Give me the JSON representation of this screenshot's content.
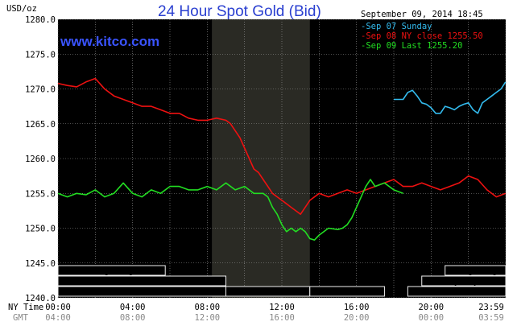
{
  "header": {
    "title": "24 Hour Spot Gold (Bid)",
    "unit": "USD/oz",
    "timestamp": "September 09, 2014 18:45",
    "brand": "www.kitco.com"
  },
  "colors": {
    "background": "#000000",
    "grid": "#9a9a9a",
    "highlight": "#2a2a24",
    "sep07": "#33bbee",
    "sep08": "#ee1111",
    "sep09": "#22dd22",
    "title": "#2a3fd0"
  },
  "time_rows": {
    "ny_label": "NY Time",
    "gmt_label": "GMT",
    "ny_ticks": [
      "00:00",
      "04:00",
      "08:00",
      "12:00",
      "16:00",
      "20:00",
      "23:59"
    ],
    "gmt_ticks": [
      "04:00",
      "08:00",
      "12:00",
      "16:00",
      "20:00",
      "00:00",
      "03:59"
    ]
  },
  "sessions": [
    {
      "label": "Hong Kong",
      "start": 0,
      "end": 5.75,
      "row": 0
    },
    {
      "label": "London",
      "start": 0,
      "end": 9.0,
      "row": 1
    },
    {
      "label": "New York Globex",
      "start": 0,
      "end": 9.0,
      "row": 2
    },
    {
      "label": "New York NYMEX",
      "start": 9.0,
      "end": 13.5,
      "row": 2
    },
    {
      "label": "NY Globex",
      "start": 13.5,
      "end": 17.5,
      "row": 2
    },
    {
      "label": "Hong Kong",
      "start": 20.75,
      "end": 24,
      "row": 0
    },
    {
      "label": "Sydney",
      "start": 19.5,
      "end": 24,
      "row": 1
    },
    {
      "label": "New York Globex",
      "start": 18.75,
      "end": 24,
      "row": 2
    }
  ],
  "chart_data": {
    "type": "line",
    "title": "24 Hour Spot Gold (Bid)",
    "ylabel": "USD/oz",
    "xlabel": "NY Time",
    "xlim": [
      0,
      24
    ],
    "ylim": [
      1240,
      1280
    ],
    "yticks": [
      1240,
      1245,
      1250,
      1255,
      1260,
      1265,
      1270,
      1275,
      1280
    ],
    "highlight_range": [
      8.25,
      13.5
    ],
    "grid": true,
    "legend_position": "top-right",
    "series": [
      {
        "name": "Sep 07 Sunday",
        "legend_label": "-Sep 07 Sunday",
        "x": [
          18.0,
          18.5,
          18.75,
          19.0,
          19.25,
          19.5,
          19.75,
          20.0,
          20.25,
          20.5,
          20.75,
          21.0,
          21.25,
          21.5,
          21.75,
          22.0,
          22.25,
          22.5,
          22.75,
          23.0,
          23.25,
          23.5,
          23.75,
          23.99
        ],
        "y": [
          1268.5,
          1268.5,
          1269.5,
          1269.8,
          1269.0,
          1268.0,
          1267.8,
          1267.3,
          1266.5,
          1266.5,
          1267.5,
          1267.3,
          1267.0,
          1267.5,
          1267.8,
          1268.0,
          1267.0,
          1266.5,
          1268.0,
          1268.5,
          1269.0,
          1269.5,
          1270.0,
          1271.0
        ]
      },
      {
        "name": "Sep 08 NY close 1255.50",
        "legend_label": "-Sep 08 NY close 1255.50",
        "x": [
          0.0,
          0.5,
          1.0,
          1.5,
          2.0,
          2.5,
          3.0,
          3.5,
          4.0,
          4.5,
          5.0,
          5.5,
          6.0,
          6.5,
          7.0,
          7.5,
          8.0,
          8.5,
          9.0,
          9.25,
          9.5,
          9.75,
          10.0,
          10.25,
          10.5,
          10.75,
          11.0,
          11.25,
          11.5,
          11.75,
          12.0,
          12.25,
          12.5,
          12.75,
          13.0,
          13.25,
          13.5,
          14.0,
          14.5,
          15.0,
          15.5,
          16.0,
          16.5,
          17.0,
          17.5,
          18.0,
          18.5,
          19.0,
          19.5,
          20.0,
          20.5,
          21.0,
          21.5,
          22.0,
          22.5,
          23.0,
          23.5,
          23.99
        ],
        "y": [
          1270.8,
          1270.5,
          1270.3,
          1271.0,
          1271.5,
          1270.0,
          1269.0,
          1268.5,
          1268.0,
          1267.5,
          1267.5,
          1267.0,
          1266.5,
          1266.5,
          1265.8,
          1265.5,
          1265.5,
          1265.8,
          1265.5,
          1265.0,
          1264.0,
          1263.0,
          1261.5,
          1260.0,
          1258.5,
          1258.0,
          1257.0,
          1256.0,
          1255.0,
          1254.5,
          1254.0,
          1253.5,
          1253.0,
          1252.5,
          1252.0,
          1253.0,
          1254.0,
          1255.0,
          1254.5,
          1255.0,
          1255.5,
          1255.0,
          1255.5,
          1256.0,
          1256.5,
          1257.0,
          1256.0,
          1256.0,
          1256.5,
          1256.0,
          1255.5,
          1256.0,
          1256.5,
          1257.5,
          1257.0,
          1255.5,
          1254.5,
          1255.0
        ]
      },
      {
        "name": "Sep 09 Last 1255.20",
        "legend_label": "-Sep 09 Last 1255.20",
        "x": [
          0.0,
          0.5,
          1.0,
          1.5,
          2.0,
          2.5,
          3.0,
          3.5,
          4.0,
          4.5,
          5.0,
          5.5,
          6.0,
          6.5,
          7.0,
          7.5,
          8.0,
          8.5,
          9.0,
          9.5,
          10.0,
          10.5,
          11.0,
          11.25,
          11.5,
          11.75,
          12.0,
          12.25,
          12.5,
          12.75,
          13.0,
          13.25,
          13.5,
          13.75,
          14.0,
          14.5,
          15.0,
          15.25,
          15.5,
          15.75,
          16.0,
          16.25,
          16.5,
          16.75,
          17.0,
          17.5,
          18.0,
          18.5
        ],
        "y": [
          1255.0,
          1254.5,
          1255.0,
          1254.8,
          1255.5,
          1254.5,
          1255.0,
          1256.5,
          1255.0,
          1254.5,
          1255.5,
          1255.0,
          1256.0,
          1256.0,
          1255.5,
          1255.5,
          1256.0,
          1255.5,
          1256.5,
          1255.5,
          1256.0,
          1255.0,
          1255.0,
          1254.5,
          1253.0,
          1252.0,
          1250.5,
          1249.5,
          1250.0,
          1249.5,
          1250.0,
          1249.5,
          1248.5,
          1248.3,
          1249.0,
          1250.0,
          1249.8,
          1250.0,
          1250.5,
          1251.5,
          1253.0,
          1254.5,
          1256.0,
          1257.0,
          1256.0,
          1256.5,
          1255.5,
          1255.0
        ]
      }
    ]
  }
}
